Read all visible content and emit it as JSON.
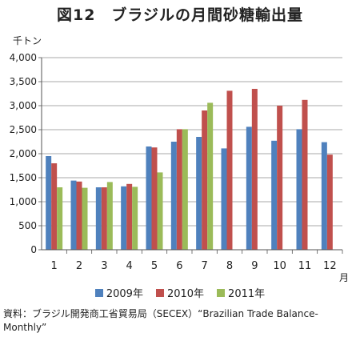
{
  "chart_data": {
    "type": "bar",
    "title": "図12　ブラジルの月間砂糖輸出量",
    "ylabel": "千トン",
    "xlabel": "月",
    "ylim": [
      0,
      4000
    ],
    "yticks": [
      "0",
      "500",
      "1,000",
      "1,500",
      "2,000",
      "2,500",
      "3,000",
      "3,500",
      "4,000"
    ],
    "categories": [
      "1",
      "2",
      "3",
      "4",
      "5",
      "6",
      "7",
      "8",
      "9",
      "10",
      "11",
      "12"
    ],
    "series": [
      {
        "name": "2009年",
        "color": "#4f81bd",
        "values": [
          1950,
          1440,
          1300,
          1320,
          2150,
          2250,
          2350,
          2110,
          2560,
          2270,
          2510,
          2240
        ]
      },
      {
        "name": "2010年",
        "color": "#c0504d",
        "values": [
          1800,
          1420,
          1300,
          1370,
          2130,
          2510,
          2900,
          3310,
          3350,
          3000,
          3120,
          1980
        ]
      },
      {
        "name": "2011年",
        "color": "#9bbb59",
        "values": [
          1300,
          1290,
          1410,
          1310,
          1610,
          2510,
          3060,
          null,
          null,
          null,
          null,
          null
        ]
      }
    ],
    "grid": true,
    "legend": "bottom"
  },
  "source": "資料：ブラジル開発商工省貿易局（SECEX）“Brazilian Trade Balance-Monthly”"
}
